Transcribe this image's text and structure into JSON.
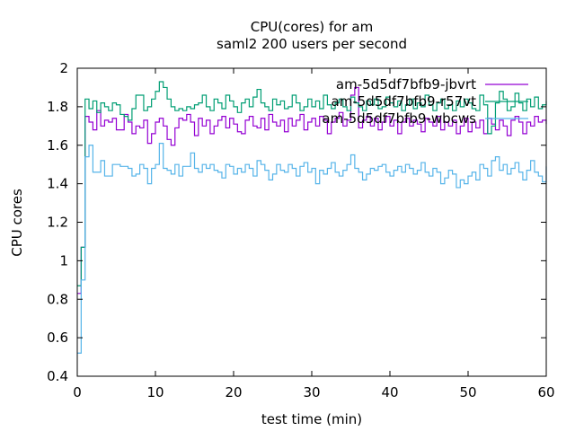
{
  "chart_data": {
    "type": "line",
    "title": "CPU(cores) for am",
    "subtitle": "saml2 200 users per second",
    "xlabel": "test time (min)",
    "ylabel": "CPU cores",
    "xlim": [
      0,
      60
    ],
    "ylim": [
      0.4,
      2
    ],
    "xticks": [
      0,
      10,
      20,
      30,
      40,
      50,
      60
    ],
    "yticks": [
      0.4,
      0.6,
      0.8,
      1,
      1.2,
      1.4,
      1.6,
      1.8,
      2
    ],
    "x_start": 0,
    "x_step": 0.5,
    "grid": false,
    "legend_position": "top-right",
    "series": [
      {
        "name": "am-5d5df7bfb9-jbvrt",
        "color": "#9400d3",
        "values": [
          0.83,
          1.07,
          1.75,
          1.72,
          1.68,
          1.78,
          1.7,
          1.73,
          1.72,
          1.74,
          1.68,
          1.68,
          1.76,
          1.72,
          1.66,
          1.7,
          1.69,
          1.73,
          1.61,
          1.66,
          1.72,
          1.74,
          1.7,
          1.63,
          1.6,
          1.69,
          1.74,
          1.73,
          1.76,
          1.72,
          1.65,
          1.74,
          1.7,
          1.73,
          1.66,
          1.7,
          1.73,
          1.75,
          1.69,
          1.74,
          1.71,
          1.67,
          1.66,
          1.73,
          1.75,
          1.7,
          1.69,
          1.74,
          1.68,
          1.76,
          1.72,
          1.7,
          1.73,
          1.67,
          1.74,
          1.7,
          1.73,
          1.76,
          1.68,
          1.72,
          1.74,
          1.7,
          1.75,
          1.73,
          1.66,
          1.72,
          1.74,
          1.77,
          1.7,
          1.73,
          1.86,
          1.9,
          1.69,
          1.73,
          1.75,
          1.7,
          1.74,
          1.68,
          1.72,
          1.75,
          1.7,
          1.73,
          1.66,
          1.72,
          1.74,
          1.7,
          1.73,
          1.71,
          1.67,
          1.74,
          1.72,
          1.7,
          1.75,
          1.68,
          1.72,
          1.7,
          1.73,
          1.66,
          1.7,
          1.74,
          1.67,
          1.72,
          1.69,
          1.73,
          1.66,
          1.74,
          1.71,
          1.68,
          1.73,
          1.7,
          1.65,
          1.73,
          1.75,
          1.72,
          1.66,
          1.72,
          1.7,
          1.75,
          1.72,
          1.73,
          1.71
        ]
      },
      {
        "name": "am-5d5df7bfb9-r57vt",
        "color": "#009e73",
        "values": [
          0.87,
          1.07,
          1.84,
          1.79,
          1.83,
          1.77,
          1.82,
          1.8,
          1.78,
          1.82,
          1.81,
          1.76,
          1.75,
          1.73,
          1.79,
          1.86,
          1.86,
          1.78,
          1.8,
          1.84,
          1.88,
          1.93,
          1.9,
          1.84,
          1.8,
          1.78,
          1.79,
          1.78,
          1.8,
          1.79,
          1.81,
          1.82,
          1.86,
          1.8,
          1.78,
          1.84,
          1.82,
          1.79,
          1.86,
          1.83,
          1.8,
          1.77,
          1.82,
          1.84,
          1.8,
          1.85,
          1.89,
          1.82,
          1.8,
          1.78,
          1.84,
          1.81,
          1.83,
          1.79,
          1.8,
          1.86,
          1.82,
          1.78,
          1.8,
          1.84,
          1.8,
          1.83,
          1.79,
          1.86,
          1.81,
          1.79,
          1.82,
          1.84,
          1.8,
          1.78,
          1.85,
          1.82,
          1.8,
          1.78,
          1.83,
          1.81,
          1.84,
          1.79,
          1.8,
          1.85,
          1.82,
          1.8,
          1.83,
          1.78,
          1.81,
          1.84,
          1.79,
          1.82,
          1.8,
          1.86,
          1.81,
          1.78,
          1.82,
          1.84,
          1.79,
          1.81,
          1.78,
          1.83,
          1.8,
          1.84,
          1.82,
          1.79,
          1.78,
          1.86,
          1.81,
          1.66,
          1.7,
          1.82,
          1.88,
          1.84,
          1.78,
          1.8,
          1.87,
          1.82,
          1.78,
          1.84,
          1.8,
          1.85,
          1.79,
          1.81,
          1.83
        ]
      },
      {
        "name": "am-5d5df7bfb9-wbcws",
        "color": "#56b4e9",
        "values": [
          0.52,
          0.9,
          1.54,
          1.6,
          1.46,
          1.46,
          1.52,
          1.44,
          1.44,
          1.5,
          1.5,
          1.49,
          1.49,
          1.48,
          1.44,
          1.45,
          1.5,
          1.48,
          1.4,
          1.48,
          1.5,
          1.61,
          1.48,
          1.47,
          1.45,
          1.5,
          1.44,
          1.49,
          1.49,
          1.56,
          1.48,
          1.46,
          1.5,
          1.48,
          1.5,
          1.47,
          1.46,
          1.43,
          1.5,
          1.49,
          1.45,
          1.48,
          1.46,
          1.5,
          1.48,
          1.44,
          1.52,
          1.5,
          1.47,
          1.42,
          1.45,
          1.5,
          1.47,
          1.46,
          1.5,
          1.48,
          1.44,
          1.49,
          1.51,
          1.46,
          1.48,
          1.4,
          1.47,
          1.45,
          1.48,
          1.51,
          1.46,
          1.44,
          1.47,
          1.5,
          1.55,
          1.48,
          1.46,
          1.42,
          1.45,
          1.48,
          1.47,
          1.49,
          1.5,
          1.46,
          1.44,
          1.47,
          1.49,
          1.46,
          1.5,
          1.48,
          1.45,
          1.47,
          1.51,
          1.46,
          1.44,
          1.48,
          1.46,
          1.4,
          1.43,
          1.47,
          1.45,
          1.38,
          1.42,
          1.4,
          1.44,
          1.46,
          1.42,
          1.5,
          1.48,
          1.44,
          1.52,
          1.54,
          1.47,
          1.5,
          1.45,
          1.48,
          1.51,
          1.46,
          1.42,
          1.47,
          1.52,
          1.46,
          1.44,
          1.41,
          1.49
        ]
      }
    ]
  }
}
